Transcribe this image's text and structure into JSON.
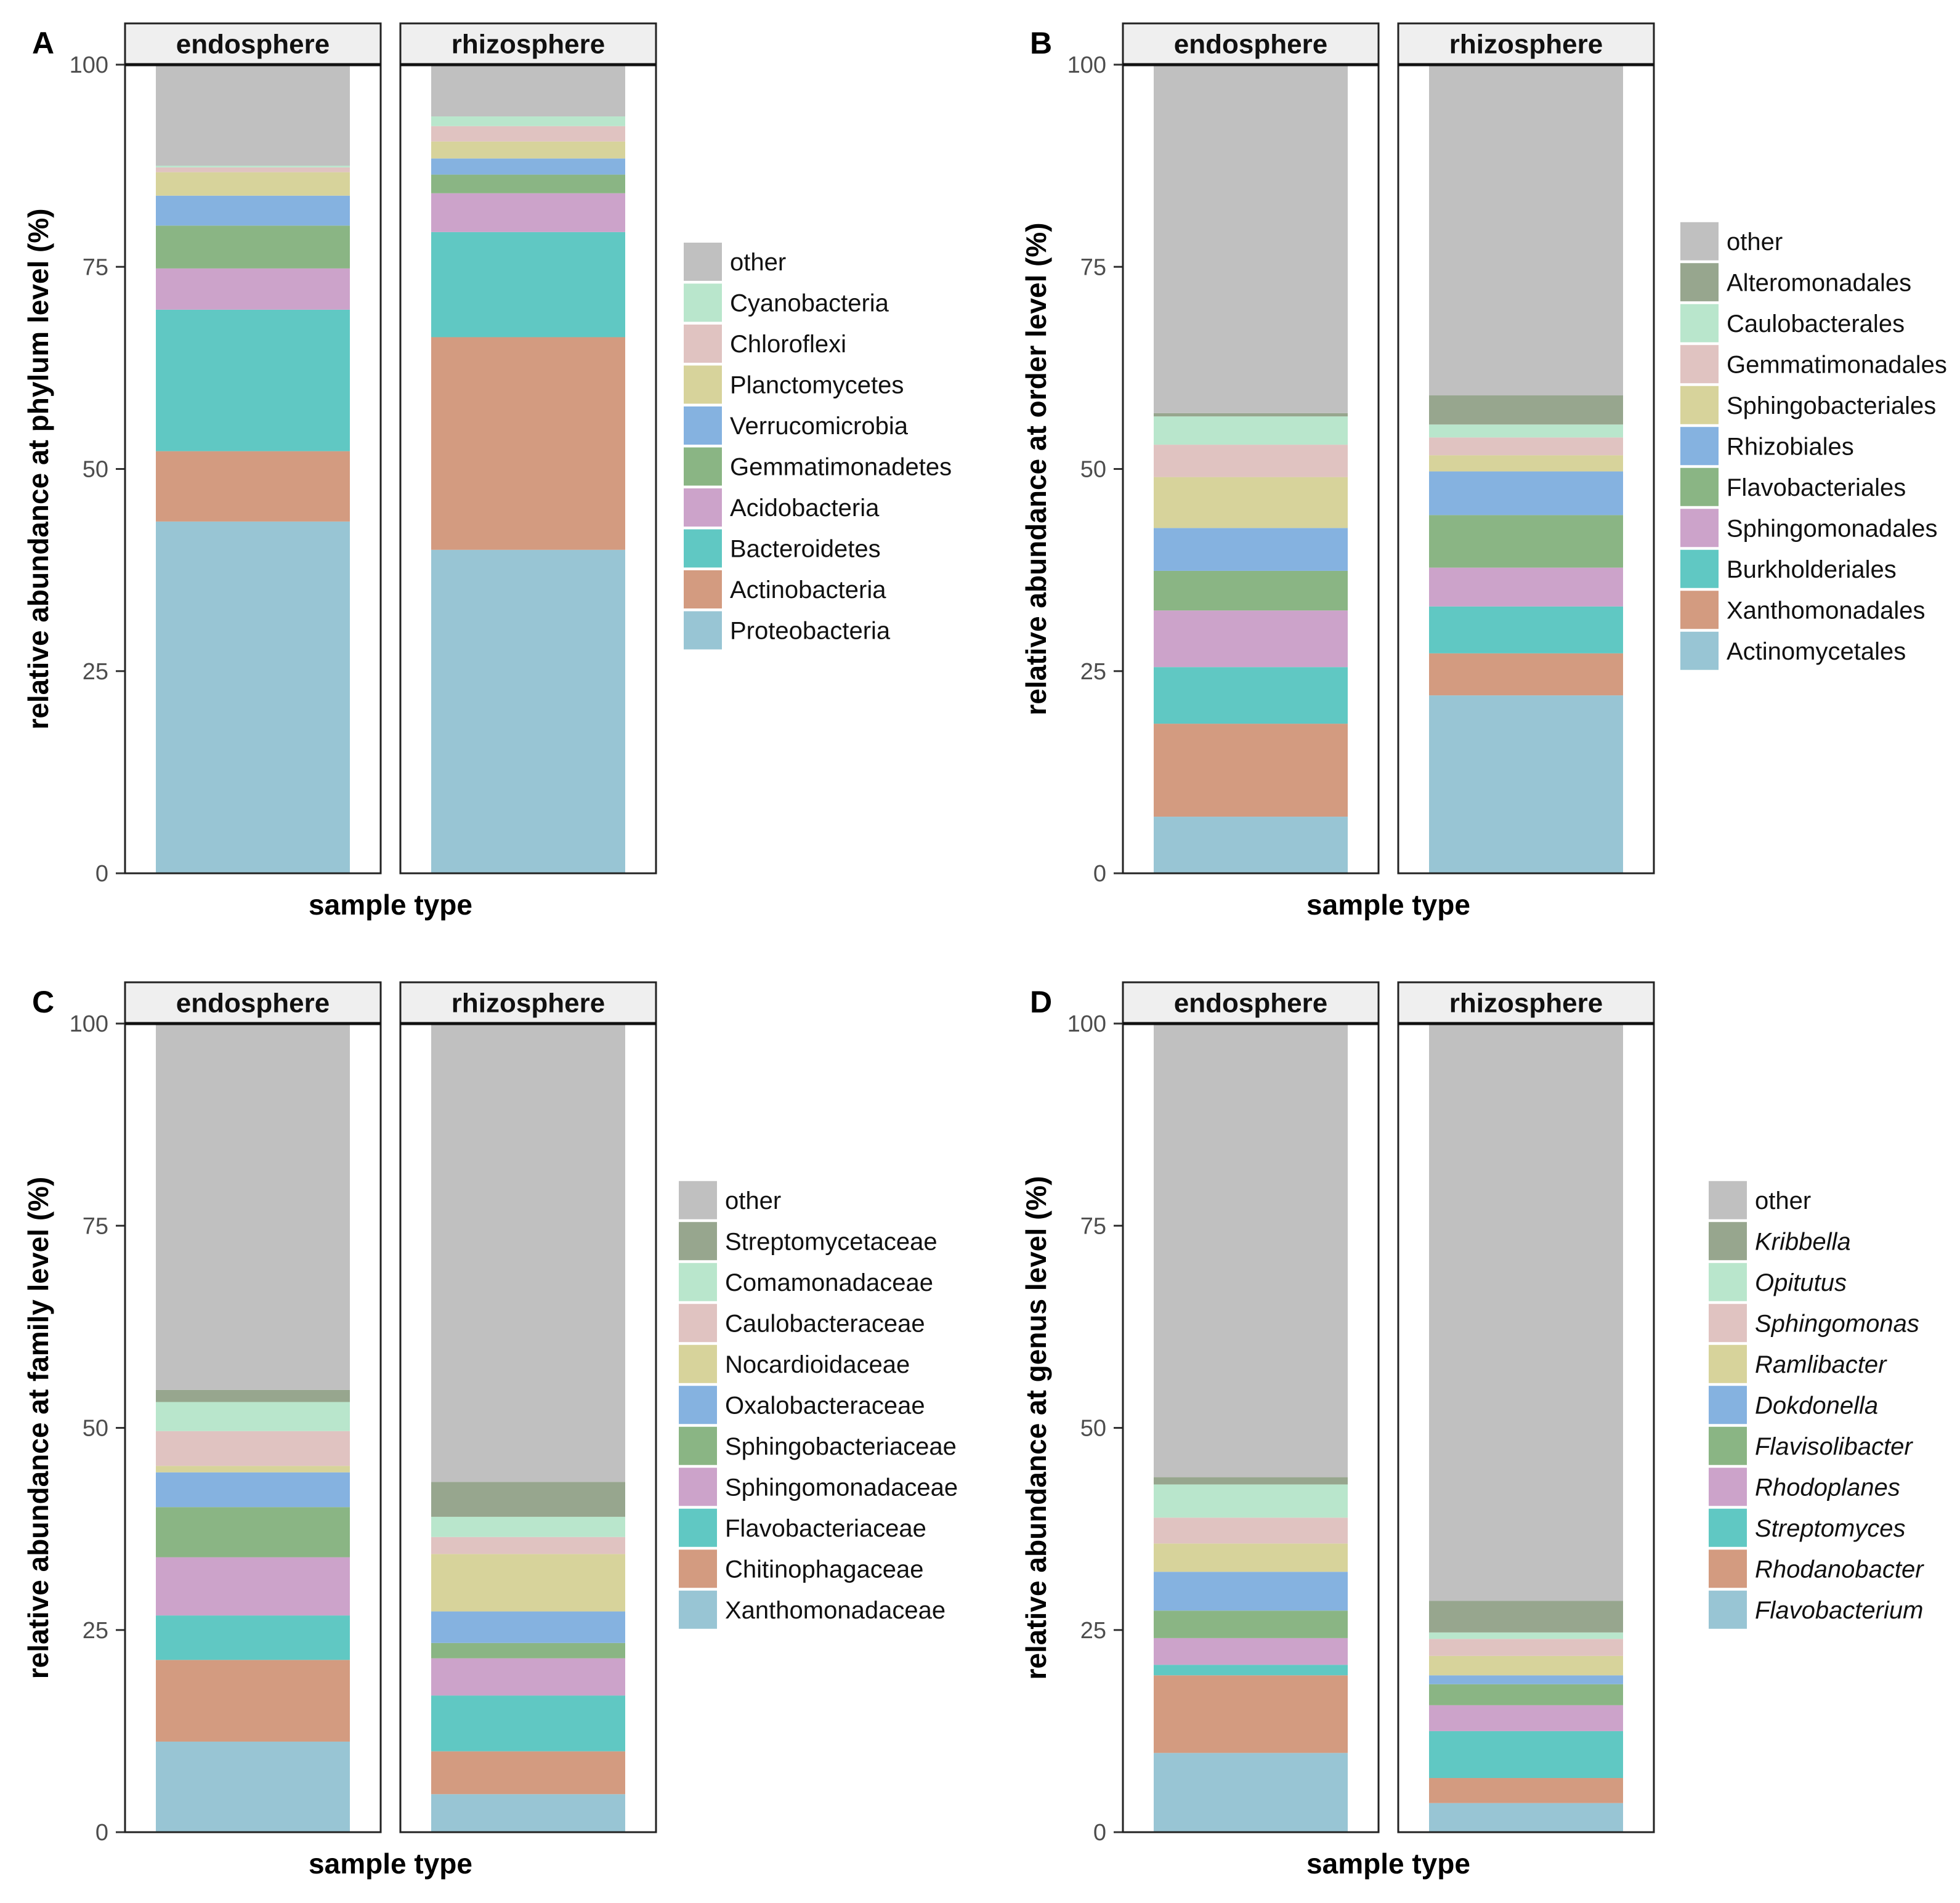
{
  "chart_data": [
    {
      "panel": "A",
      "type": "bar",
      "stacked": true,
      "categories": [
        "endosphere",
        "rhizosphere"
      ],
      "xlabel": "sample type",
      "ylabel": "relative abundance at phylum level (%)",
      "ylim": [
        0,
        100
      ],
      "yticks": [
        "0",
        "25",
        "50",
        "75",
        "100"
      ],
      "legend_italic": false,
      "series": [
        {
          "name": "Proteobacteria",
          "color": "#98c5d4",
          "values": [
            43.5,
            40.0
          ]
        },
        {
          "name": "Actinobacteria",
          "color": "#d39b80",
          "values": [
            8.7,
            26.3
          ]
        },
        {
          "name": "Bacteroidetes",
          "color": "#60c8c3",
          "values": [
            17.5,
            13.0
          ]
        },
        {
          "name": "Acidobacteria",
          "color": "#cca3ca",
          "values": [
            5.1,
            4.8
          ]
        },
        {
          "name": "Gemmatimonadetes",
          "color": "#8ab584",
          "values": [
            5.3,
            2.3
          ]
        },
        {
          "name": "Verrucomicrobia",
          "color": "#85b2e0",
          "values": [
            3.7,
            2.0
          ]
        },
        {
          "name": "Planctomycetes",
          "color": "#d7d39b",
          "values": [
            2.9,
            2.1
          ]
        },
        {
          "name": "Chloroflexi",
          "color": "#e0c3c1",
          "values": [
            0.6,
            1.9
          ]
        },
        {
          "name": "Cyanobacteria",
          "color": "#b9e6cc",
          "values": [
            0.2,
            1.2
          ]
        },
        {
          "name": "other",
          "color": "#c0c0c0",
          "values": [
            12.5,
            6.4
          ]
        }
      ]
    },
    {
      "panel": "B",
      "type": "bar",
      "stacked": true,
      "categories": [
        "endosphere",
        "rhizosphere"
      ],
      "xlabel": "sample type",
      "ylabel": "relative abundance at order level (%)",
      "ylim": [
        0,
        100
      ],
      "yticks": [
        "0",
        "25",
        "50",
        "75",
        "100"
      ],
      "legend_italic": false,
      "series": [
        {
          "name": "Actinomycetales",
          "color": "#98c5d4",
          "values": [
            7.0,
            22.0
          ]
        },
        {
          "name": "Xanthomonadales",
          "color": "#d39b80",
          "values": [
            11.5,
            5.2
          ]
        },
        {
          "name": "Burkholderiales",
          "color": "#60c8c3",
          "values": [
            7.0,
            5.8
          ]
        },
        {
          "name": "Sphingomonadales",
          "color": "#cca3ca",
          "values": [
            7.0,
            4.8
          ]
        },
        {
          "name": "Flavobacteriales",
          "color": "#8ab584",
          "values": [
            4.9,
            6.5
          ]
        },
        {
          "name": "Rhizobiales",
          "color": "#85b2e0",
          "values": [
            5.3,
            5.4
          ]
        },
        {
          "name": "Sphingobacteriales",
          "color": "#d7d39b",
          "values": [
            6.3,
            2.0
          ]
        },
        {
          "name": "Gemmatimonadales",
          "color": "#e0c3c1",
          "values": [
            4.0,
            2.2
          ]
        },
        {
          "name": "Caulobacterales",
          "color": "#b9e6cc",
          "values": [
            3.5,
            1.6
          ]
        },
        {
          "name": "Alteromonadales",
          "color": "#97a68e",
          "values": [
            0.4,
            3.6
          ]
        },
        {
          "name": "other",
          "color": "#c0c0c0",
          "values": [
            43.1,
            40.9
          ]
        }
      ]
    },
    {
      "panel": "C",
      "type": "bar",
      "stacked": true,
      "categories": [
        "endosphere",
        "rhizosphere"
      ],
      "xlabel": "sample type",
      "ylabel": "relative abundance at family level (%)",
      "ylim": [
        0,
        100
      ],
      "yticks": [
        "0",
        "25",
        "50",
        "75",
        "100"
      ],
      "legend_italic": false,
      "series": [
        {
          "name": "Xanthomonadaceae",
          "color": "#98c5d4",
          "values": [
            11.2,
            4.7
          ]
        },
        {
          "name": "Chitinophagaceae",
          "color": "#d39b80",
          "values": [
            10.1,
            5.3
          ]
        },
        {
          "name": "Flavobacteriaceae",
          "color": "#60c8c3",
          "values": [
            5.5,
            6.9
          ]
        },
        {
          "name": "Sphingomonadaceae",
          "color": "#cca3ca",
          "values": [
            7.2,
            4.6
          ]
        },
        {
          "name": "Sphingobacteriaceae",
          "color": "#8ab584",
          "values": [
            6.2,
            1.9
          ]
        },
        {
          "name": "Oxalobacteraceae",
          "color": "#85b2e0",
          "values": [
            4.3,
            3.9
          ]
        },
        {
          "name": "Nocardioidaceae",
          "color": "#d7d39b",
          "values": [
            0.8,
            7.1
          ]
        },
        {
          "name": "Caulobacteraceae",
          "color": "#e0c3c1",
          "values": [
            4.3,
            2.1
          ]
        },
        {
          "name": "Comamonadaceae",
          "color": "#b9e6cc",
          "values": [
            3.6,
            2.5
          ]
        },
        {
          "name": "Streptomycetaceae",
          "color": "#97a68e",
          "values": [
            1.5,
            4.3
          ]
        },
        {
          "name": "other",
          "color": "#c0c0c0",
          "values": [
            45.3,
            56.7
          ]
        }
      ]
    },
    {
      "panel": "D",
      "type": "bar",
      "stacked": true,
      "categories": [
        "endosphere",
        "rhizosphere"
      ],
      "xlabel": "sample type",
      "ylabel": "relative abundance at genus level (%)",
      "ylim": [
        0,
        100
      ],
      "yticks": [
        "0",
        "25",
        "50",
        "75",
        "100"
      ],
      "legend_italic": true,
      "series": [
        {
          "name": "Flavobacterium",
          "color": "#98c5d4",
          "values": [
            9.8,
            3.6
          ]
        },
        {
          "name": "Rhodanobacter",
          "color": "#d39b80",
          "values": [
            9.6,
            3.1
          ]
        },
        {
          "name": "Streptomyces",
          "color": "#60c8c3",
          "values": [
            1.3,
            5.8
          ]
        },
        {
          "name": "Rhodoplanes",
          "color": "#cca3ca",
          "values": [
            3.3,
            3.2
          ]
        },
        {
          "name": "Flavisolibacter",
          "color": "#8ab584",
          "values": [
            3.4,
            2.6
          ]
        },
        {
          "name": "Dokdonella",
          "color": "#85b2e0",
          "values": [
            4.8,
            1.1
          ]
        },
        {
          "name": "Ramlibacter",
          "color": "#d7d39b",
          "values": [
            3.5,
            2.4
          ]
        },
        {
          "name": "Sphingomonas",
          "color": "#e0c3c1",
          "values": [
            3.2,
            2.1
          ]
        },
        {
          "name": "Opitutus",
          "color": "#b9e6cc",
          "values": [
            4.1,
            0.8
          ]
        },
        {
          "name": "Kribbella",
          "color": "#97a68e",
          "values": [
            0.9,
            3.9
          ]
        },
        {
          "name": "other",
          "color": "#c0c0c0",
          "values": [
            56.1,
            71.4
          ]
        }
      ]
    }
  ]
}
